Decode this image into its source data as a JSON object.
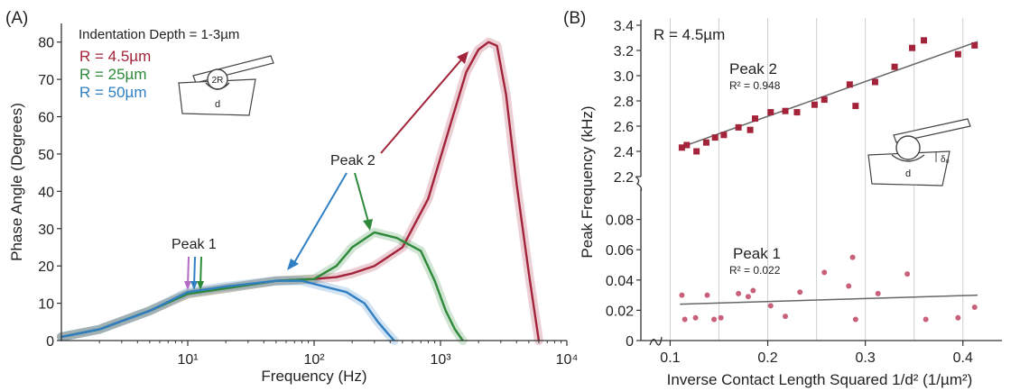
{
  "colors": {
    "r45": "#a3243a",
    "r25": "#2e8a3a",
    "r50": "#2f7fc2",
    "points": "#a3243a",
    "fit": "#666666",
    "axis": "#333333"
  },
  "panel_a": {
    "label": "(A)",
    "indentation": "Indentation Depth = 1-3µm",
    "peak1": "Peak 1",
    "peak2": "Peak 2",
    "legend": [
      {
        "text": "R = 4.5µm",
        "color": "#a3243a"
      },
      {
        "text": "R = 25µm",
        "color": "#2e8a3a"
      },
      {
        "text": "R = 50µm",
        "color": "#2f7fc2"
      }
    ],
    "inset": {
      "r_label": "2R",
      "d_label": "d"
    }
  },
  "panel_b": {
    "label": "(B)",
    "legend": "R = 4.5µm",
    "peak2": "Peak 2",
    "r2_peak2": "R² = 0.948",
    "peak1": "Peak 1",
    "r2_peak1": "R² = 0.022",
    "inset": {
      "delta_label": "δ₀",
      "d_label": "d"
    }
  },
  "chart_data": [
    {
      "type": "line",
      "xlabel": "Frequency (Hz)",
      "ylabel": "Phase Angle (Degrees)",
      "xscale": "log",
      "xlim": [
        1,
        10000
      ],
      "ylim": [
        0,
        85
      ],
      "x_ticks": [
        "10¹",
        "10²",
        "10³",
        "10⁴"
      ],
      "y_ticks": [
        "0",
        "10",
        "20",
        "30",
        "40",
        "50",
        "60",
        "70",
        "80"
      ],
      "series": [
        {
          "name": "R = 4.5µm",
          "x": [
            1,
            2,
            5,
            10,
            20,
            50,
            100,
            150,
            200,
            300,
            500,
            800,
            1200,
            1600,
            2000,
            2400,
            2800,
            3300,
            4000,
            5000,
            6000
          ],
          "y": [
            1,
            3,
            8,
            12.5,
            14,
            16,
            16.5,
            17,
            18,
            20,
            25,
            38,
            58,
            72,
            78,
            80,
            79,
            66,
            42,
            18,
            0
          ]
        },
        {
          "name": "R = 25µm",
          "x": [
            1,
            2,
            5,
            10,
            20,
            50,
            100,
            150,
            200,
            300,
            450,
            700,
            900,
            1100,
            1300,
            1500
          ],
          "y": [
            1,
            3,
            8,
            12.5,
            14,
            16,
            16.5,
            20,
            25,
            29,
            27.5,
            24,
            16,
            8,
            3,
            0
          ]
        },
        {
          "name": "R = 50µm",
          "x": [
            1,
            2,
            5,
            10,
            20,
            50,
            80,
            120,
            180,
            250,
            320,
            380,
            430
          ],
          "y": [
            1,
            3,
            8,
            13,
            14.5,
            16,
            16,
            14.5,
            13,
            10,
            5,
            2,
            0
          ]
        }
      ]
    },
    {
      "type": "scatter",
      "xlabel": "Inverse Contact Length Squared 1/d²  (1/µm²)",
      "ylabel": "Peak Frequency (kHz)",
      "xlim": [
        0.07,
        0.44
      ],
      "y_axis_break": true,
      "ylim_lower": [
        0,
        0.1
      ],
      "ylim_upper": [
        2.2,
        3.4
      ],
      "x_ticks": [
        "0.1",
        "0.2",
        "0.3",
        "0.4"
      ],
      "y_ticks_lower": [
        "0",
        "0.02",
        "0.04",
        "0.06",
        "0.08"
      ],
      "y_ticks_upper": [
        "2.2",
        "2.4",
        "2.6",
        "2.8",
        "3.0",
        "3.2",
        "3.4"
      ],
      "grid": "vertical",
      "series": [
        {
          "name": "Peak 2",
          "x": [
            0.112,
            0.117,
            0.127,
            0.137,
            0.146,
            0.155,
            0.17,
            0.182,
            0.187,
            0.203,
            0.218,
            0.23,
            0.248,
            0.258,
            0.284,
            0.29,
            0.31,
            0.33,
            0.348,
            0.36,
            0.395,
            0.412
          ],
          "y": [
            2.43,
            2.45,
            2.4,
            2.47,
            2.51,
            2.53,
            2.59,
            2.57,
            2.66,
            2.71,
            2.72,
            2.71,
            2.77,
            2.81,
            2.93,
            2.76,
            2.95,
            3.07,
            3.22,
            3.28,
            3.17,
            3.24
          ],
          "fit": {
            "x": [
              0.11,
              0.415
            ],
            "y": [
              2.43,
              3.27
            ]
          }
        },
        {
          "name": "Peak 1",
          "x": [
            0.112,
            0.115,
            0.126,
            0.138,
            0.145,
            0.152,
            0.17,
            0.18,
            0.185,
            0.203,
            0.218,
            0.233,
            0.258,
            0.283,
            0.287,
            0.29,
            0.313,
            0.343,
            0.362,
            0.395,
            0.412
          ],
          "y": [
            0.03,
            0.014,
            0.015,
            0.03,
            0.014,
            0.015,
            0.031,
            0.029,
            0.033,
            0.023,
            0.016,
            0.032,
            0.045,
            0.036,
            0.055,
            0.014,
            0.031,
            0.044,
            0.014,
            0.015,
            0.022
          ],
          "fit": {
            "x": [
              0.11,
              0.415
            ],
            "y": [
              0.024,
              0.03
            ]
          }
        }
      ]
    }
  ]
}
